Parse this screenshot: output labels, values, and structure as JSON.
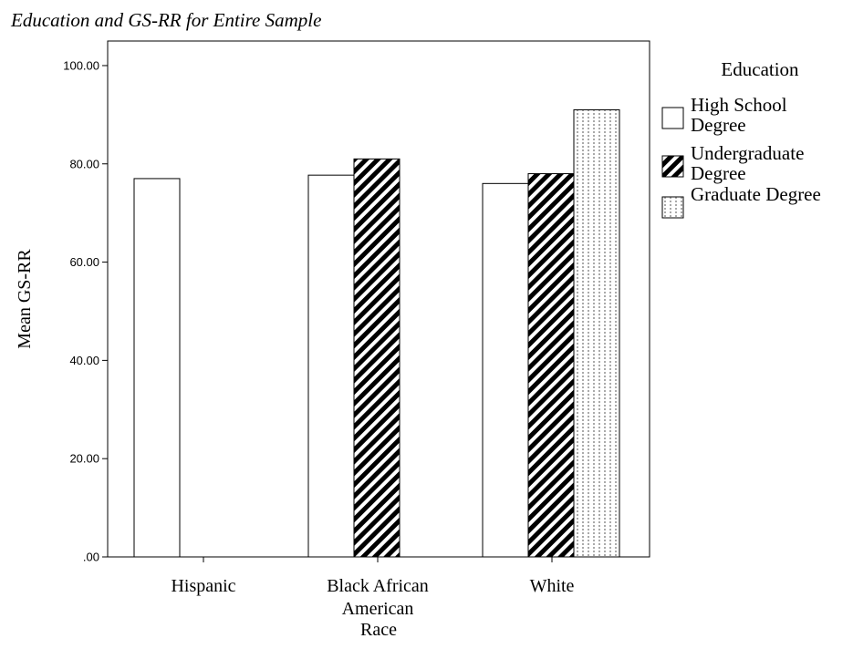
{
  "chart_data": {
    "type": "bar",
    "title": "Education and GS-RR for Entire Sample",
    "xlabel": "Race",
    "ylabel": "Mean GS-RR",
    "ylim": [
      0,
      105
    ],
    "y_ticks": [
      ".00",
      "20.00",
      "40.00",
      "60.00",
      "80.00",
      "100.00"
    ],
    "y_tick_values": [
      0,
      20,
      40,
      60,
      80,
      100
    ],
    "categories": [
      [
        "Hispanic"
      ],
      [
        "Black African",
        "American"
      ],
      [
        "White"
      ]
    ],
    "legend": {
      "title": "Education",
      "placement": "right",
      "entries": [
        {
          "lines": [
            "High School",
            "Degree"
          ],
          "pattern": "white"
        },
        {
          "lines": [
            "Undergraduate",
            "Degree"
          ],
          "pattern": "diagonal-hatch"
        },
        {
          "lines": [
            "Graduate Degree"
          ],
          "pattern": "dotted-vertical"
        }
      ]
    },
    "series": [
      {
        "name": "High School Degree",
        "values": [
          77,
          77.7,
          76
        ]
      },
      {
        "name": "Undergraduate Degree",
        "values": [
          null,
          81,
          78
        ]
      },
      {
        "name": "Graduate Degree",
        "values": [
          null,
          null,
          91
        ]
      }
    ],
    "grid": false
  }
}
